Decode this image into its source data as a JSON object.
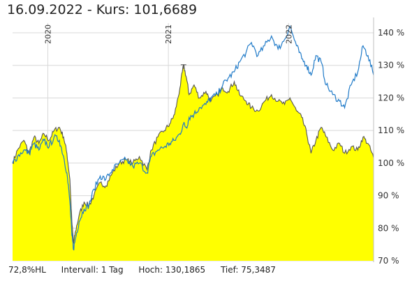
{
  "header": {
    "title": "16.09.2022  -  Kurs: 101,6689"
  },
  "footer": {
    "hl": "72,8%HL",
    "interval": "Intervall: 1 Tag",
    "high": "Hoch: 130,1865",
    "low": "Tief: 75,3487"
  },
  "chart_data": {
    "type": "area",
    "x_start": "2019-09-16",
    "x_end": "2022-09-16",
    "ylim": [
      70,
      143
    ],
    "y_ticks": [
      {
        "value": 70,
        "label": "70 %"
      },
      {
        "value": 80,
        "label": "80 %"
      },
      {
        "value": 90,
        "label": "90 %"
      },
      {
        "value": 100,
        "label": "100 %"
      },
      {
        "value": 110,
        "label": "110 %"
      },
      {
        "value": 120,
        "label": "120 %"
      },
      {
        "value": 130,
        "label": "130 %"
      },
      {
        "value": 140,
        "label": "140 %"
      }
    ],
    "x_ticks": [
      {
        "date": "2020-01-01",
        "label": "2020"
      },
      {
        "date": "2021-01-01",
        "label": "2021"
      },
      {
        "date": "2022-01-01",
        "label": "2022"
      }
    ],
    "grid": true,
    "colors": {
      "area_fill": "#ffff00",
      "area_line": "#555555",
      "comparison_line": "#1f7ac8",
      "grid": "#d8d8d8"
    },
    "series": [
      {
        "style": "area",
        "points": [
          [
            "2019-09-16",
            100
          ],
          [
            "2019-10-01",
            104
          ],
          [
            "2019-10-20",
            107
          ],
          [
            "2019-11-05",
            103
          ],
          [
            "2019-11-20",
            108
          ],
          [
            "2019-12-05",
            106
          ],
          [
            "2019-12-20",
            109
          ],
          [
            "2020-01-05",
            107
          ],
          [
            "2020-01-20",
            110
          ],
          [
            "2020-02-05",
            111
          ],
          [
            "2020-02-18",
            108
          ],
          [
            "2020-02-28",
            103
          ],
          [
            "2020-03-08",
            95
          ],
          [
            "2020-03-14",
            82
          ],
          [
            "2020-03-19",
            75.3
          ],
          [
            "2020-03-25",
            79
          ],
          [
            "2020-04-05",
            84
          ],
          [
            "2020-04-20",
            88
          ],
          [
            "2020-05-05",
            87
          ],
          [
            "2020-05-20",
            90
          ],
          [
            "2020-06-08",
            94
          ],
          [
            "2020-06-25",
            93
          ],
          [
            "2020-07-15",
            97
          ],
          [
            "2020-08-05",
            100
          ],
          [
            "2020-08-25",
            101
          ],
          [
            "2020-09-15",
            100
          ],
          [
            "2020-10-05",
            102
          ],
          [
            "2020-10-28",
            98
          ],
          [
            "2020-11-10",
            104
          ],
          [
            "2020-11-30",
            108
          ],
          [
            "2020-12-20",
            110
          ],
          [
            "2021-01-05",
            112
          ],
          [
            "2021-01-20",
            115
          ],
          [
            "2021-02-05",
            123
          ],
          [
            "2021-02-16",
            130.19
          ],
          [
            "2021-02-25",
            126
          ],
          [
            "2021-03-05",
            121
          ],
          [
            "2021-03-20",
            124
          ],
          [
            "2021-04-05",
            120
          ],
          [
            "2021-04-25",
            122
          ],
          [
            "2021-05-10",
            119
          ],
          [
            "2021-05-30",
            121
          ],
          [
            "2021-06-15",
            123
          ],
          [
            "2021-07-01",
            122
          ],
          [
            "2021-07-20",
            125
          ],
          [
            "2021-08-05",
            121
          ],
          [
            "2021-08-25",
            119
          ],
          [
            "2021-09-10",
            117
          ],
          [
            "2021-09-30",
            116
          ],
          [
            "2021-10-20",
            119
          ],
          [
            "2021-11-10",
            121
          ],
          [
            "2021-11-30",
            119
          ],
          [
            "2021-12-20",
            118
          ],
          [
            "2022-01-05",
            120
          ],
          [
            "2022-01-25",
            116
          ],
          [
            "2022-02-10",
            114
          ],
          [
            "2022-02-25",
            109
          ],
          [
            "2022-03-10",
            103
          ],
          [
            "2022-03-25",
            107
          ],
          [
            "2022-04-10",
            111
          ],
          [
            "2022-04-25",
            108
          ],
          [
            "2022-05-15",
            104
          ],
          [
            "2022-06-05",
            106
          ],
          [
            "2022-06-20",
            103
          ],
          [
            "2022-07-10",
            105
          ],
          [
            "2022-07-30",
            104
          ],
          [
            "2022-08-15",
            108
          ],
          [
            "2022-08-30",
            106
          ],
          [
            "2022-09-16",
            101.67
          ]
        ]
      },
      {
        "style": "line",
        "points": [
          [
            "2019-09-16",
            100
          ],
          [
            "2019-10-01",
            102
          ],
          [
            "2019-10-20",
            104
          ],
          [
            "2019-11-05",
            103
          ],
          [
            "2019-11-20",
            106
          ],
          [
            "2019-12-05",
            104
          ],
          [
            "2019-12-20",
            107
          ],
          [
            "2020-01-05",
            105
          ],
          [
            "2020-01-20",
            108
          ],
          [
            "2020-02-05",
            107
          ],
          [
            "2020-02-18",
            102
          ],
          [
            "2020-02-28",
            97
          ],
          [
            "2020-03-08",
            88
          ],
          [
            "2020-03-14",
            78
          ],
          [
            "2020-03-19",
            73.5
          ],
          [
            "2020-03-25",
            77
          ],
          [
            "2020-04-05",
            82
          ],
          [
            "2020-04-20",
            86
          ],
          [
            "2020-05-05",
            87
          ],
          [
            "2020-05-20",
            92
          ],
          [
            "2020-06-08",
            96
          ],
          [
            "2020-06-25",
            95
          ],
          [
            "2020-07-15",
            98
          ],
          [
            "2020-08-05",
            100
          ],
          [
            "2020-08-25",
            101
          ],
          [
            "2020-09-15",
            99
          ],
          [
            "2020-10-05",
            100
          ],
          [
            "2020-10-28",
            97
          ],
          [
            "2020-11-10",
            102
          ],
          [
            "2020-11-30",
            104
          ],
          [
            "2020-12-20",
            105
          ],
          [
            "2021-01-05",
            106
          ],
          [
            "2021-01-20",
            107
          ],
          [
            "2021-02-05",
            109
          ],
          [
            "2021-02-16",
            112
          ],
          [
            "2021-02-25",
            111
          ],
          [
            "2021-03-05",
            114
          ],
          [
            "2021-03-20",
            115
          ],
          [
            "2021-04-05",
            117
          ],
          [
            "2021-04-25",
            118
          ],
          [
            "2021-05-10",
            120
          ],
          [
            "2021-05-30",
            121
          ],
          [
            "2021-06-15",
            124
          ],
          [
            "2021-07-01",
            126
          ],
          [
            "2021-07-20",
            128
          ],
          [
            "2021-08-05",
            131
          ],
          [
            "2021-08-25",
            134
          ],
          [
            "2021-09-10",
            137
          ],
          [
            "2021-09-30",
            133
          ],
          [
            "2021-10-20",
            136
          ],
          [
            "2021-11-10",
            139
          ],
          [
            "2021-11-30",
            135
          ],
          [
            "2021-12-20",
            138
          ],
          [
            "2022-01-05",
            142
          ],
          [
            "2022-01-25",
            136
          ],
          [
            "2022-02-10",
            132
          ],
          [
            "2022-02-25",
            130
          ],
          [
            "2022-03-10",
            127
          ],
          [
            "2022-03-25",
            133
          ],
          [
            "2022-04-10",
            131
          ],
          [
            "2022-04-25",
            124
          ],
          [
            "2022-05-15",
            121
          ],
          [
            "2022-06-05",
            119
          ],
          [
            "2022-06-20",
            117
          ],
          [
            "2022-07-10",
            124
          ],
          [
            "2022-07-30",
            128
          ],
          [
            "2022-08-15",
            136
          ],
          [
            "2022-08-30",
            133
          ],
          [
            "2022-09-16",
            127
          ]
        ]
      }
    ]
  }
}
